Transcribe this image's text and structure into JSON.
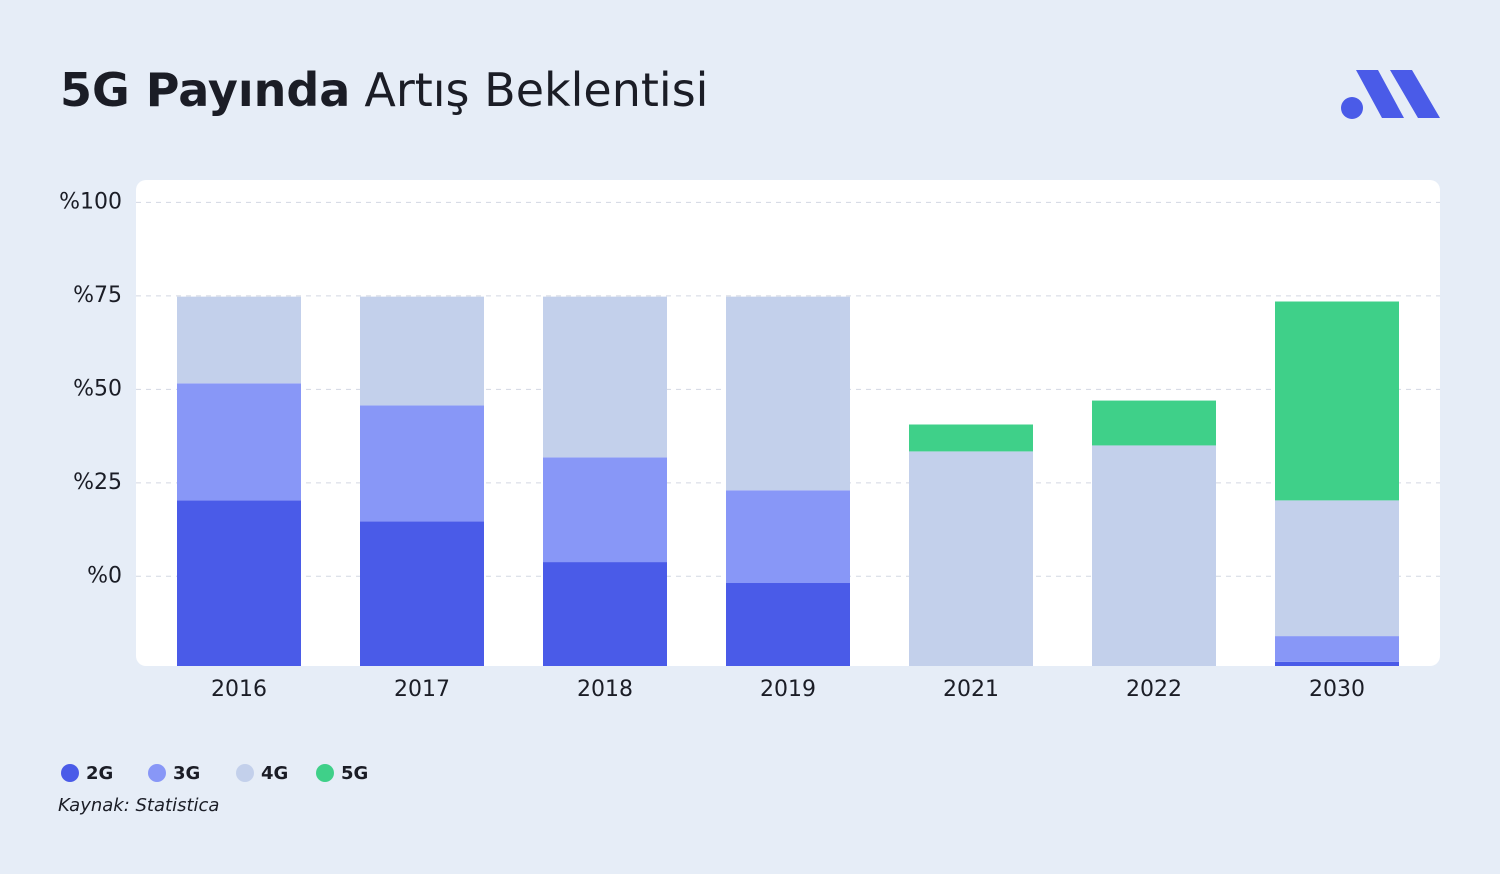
{
  "chart_data": {
    "type": "stacked_bar",
    "title_bold": "5G Payında",
    "title_regular": "Artış Beklentisi",
    "categories": [
      "2016",
      "2017",
      "2018",
      "2019",
      "2021",
      "2022",
      "2030"
    ],
    "series": [
      {
        "name": "2G",
        "color": "#4a5be8",
        "values": [
          44.3,
          38.7,
          27.8,
          22.2,
          0,
          0,
          1.1
        ]
      },
      {
        "name": "3G",
        "color": "#8897f7",
        "values": [
          31.3,
          31.0,
          28.0,
          24.8,
          0,
          0,
          6.9
        ]
      },
      {
        "name": "4G",
        "color": "#c3d0eb",
        "values": [
          23.2,
          29.1,
          43.0,
          51.8,
          57.4,
          59.0,
          36.3
        ]
      },
      {
        "name": "5G",
        "color": "#3fd089",
        "values": [
          0,
          0,
          0,
          0,
          7.2,
          12.0,
          53.2
        ]
      }
    ],
    "ylim": [
      -24,
      106
    ],
    "yticks": [
      {
        "value": 0,
        "label": "%0"
      },
      {
        "value": 25,
        "label": "%25"
      },
      {
        "value": 50,
        "label": "%50"
      },
      {
        "value": 75,
        "label": "%75"
      },
      {
        "value": 100,
        "label": "%100"
      }
    ],
    "grid": true,
    "source": "Kaynak: Statistica"
  }
}
